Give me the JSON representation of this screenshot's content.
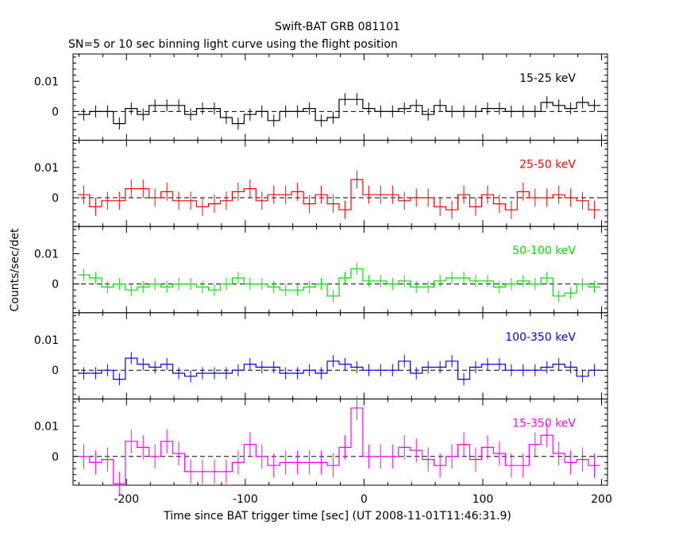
{
  "title": "Swift-BAT GRB 081101",
  "subtitle": "SN=5 or 10 sec binning light curve using the flight position",
  "xlabel": "Time since BAT trigger time [sec] (UT 2008-11-01T11:46:31.9)",
  "ylabel": "Counts/sec/det",
  "chart_data": {
    "type": "line",
    "title": "Swift-BAT GRB 081101",
    "subtitle": "SN=5 or 10 sec binning light curve using the flight position",
    "xlabel": "Time since BAT trigger time [sec] (UT 2008-11-01T11:46:31.9)",
    "ylabel": "Counts/sec/det",
    "xlim": [
      -245,
      205
    ],
    "x_ticks": [
      -200,
      -100,
      0,
      100,
      200
    ],
    "bin_width": 10,
    "x": [
      -236,
      -226,
      -216,
      -206,
      -196,
      -186,
      -176,
      -166,
      -156,
      -146,
      -136,
      -126,
      -116,
      -106,
      -96,
      -86,
      -76,
      -66,
      -56,
      -46,
      -36,
      -26,
      -16,
      -6,
      4,
      14,
      24,
      34,
      44,
      54,
      64,
      74,
      84,
      94,
      104,
      114,
      124,
      134,
      144,
      154,
      164,
      174,
      184,
      194
    ],
    "panels": [
      {
        "label": "15-25 keV",
        "color": "#000000",
        "ylim": [
          -0.0095,
          0.019
        ],
        "y_ticks": [
          0,
          0.01
        ],
        "y_tick_labels": [
          "0",
          "0.01"
        ],
        "values": [
          -0.001,
          0,
          0,
          -0.004,
          0.001,
          -0.001,
          0.002,
          0.002,
          0.002,
          -0.001,
          0.001,
          0.001,
          -0.002,
          -0.004,
          -0.001,
          0,
          -0.003,
          0,
          0,
          0.001,
          -0.003,
          -0.002,
          0.004,
          0.004,
          0.001,
          0,
          0,
          0.001,
          0.002,
          -0.001,
          0.002,
          0,
          0,
          0,
          0.001,
          0.001,
          0,
          0,
          0,
          0.003,
          0.002,
          0.001,
          0.003,
          0.002
        ],
        "errors": [
          0.002,
          0.002,
          0.002,
          0.002,
          0.002,
          0.002,
          0.002,
          0.002,
          0.002,
          0.002,
          0.002,
          0.002,
          0.002,
          0.002,
          0.002,
          0.002,
          0.002,
          0.002,
          0.002,
          0.002,
          0.002,
          0.002,
          0.002,
          0.002,
          0.002,
          0.002,
          0.002,
          0.002,
          0.002,
          0.002,
          0.002,
          0.002,
          0.002,
          0.002,
          0.002,
          0.002,
          0.002,
          0.002,
          0.002,
          0.002,
          0.002,
          0.002,
          0.002,
          0.002
        ]
      },
      {
        "label": "25-50 keV",
        "color": "#ff0000",
        "ylim": [
          -0.0095,
          0.019
        ],
        "y_ticks": [
          0,
          0.01
        ],
        "y_tick_labels": [
          "0",
          "0.01"
        ],
        "values": [
          0.001,
          -0.003,
          -0.001,
          -0.001,
          0.003,
          0.003,
          0,
          0.002,
          -0.001,
          -0.001,
          -0.003,
          -0.002,
          -0.001,
          0.002,
          0.003,
          -0.001,
          0.001,
          0.001,
          0.002,
          -0.002,
          0.001,
          -0.002,
          -0.004,
          0.006,
          0.001,
          0.001,
          0.001,
          -0.001,
          0,
          0,
          -0.003,
          -0.004,
          0.001,
          -0.003,
          0.001,
          -0.002,
          -0.004,
          0.002,
          0,
          0,
          0.001,
          0,
          -0.001,
          -0.004
        ],
        "errors": [
          0.003,
          0.003,
          0.003,
          0.003,
          0.003,
          0.003,
          0.003,
          0.003,
          0.003,
          0.003,
          0.003,
          0.003,
          0.003,
          0.003,
          0.003,
          0.003,
          0.003,
          0.003,
          0.003,
          0.003,
          0.003,
          0.003,
          0.003,
          0.003,
          0.003,
          0.003,
          0.003,
          0.003,
          0.003,
          0.003,
          0.003,
          0.003,
          0.003,
          0.003,
          0.003,
          0.003,
          0.003,
          0.003,
          0.003,
          0.003,
          0.003,
          0.003,
          0.003,
          0.003
        ]
      },
      {
        "label": "50-100 keV",
        "color": "#00e000",
        "ylim": [
          -0.0095,
          0.019
        ],
        "y_ticks": [
          0,
          0.01
        ],
        "y_tick_labels": [
          "0",
          "0.01"
        ],
        "values": [
          0.003,
          0.002,
          -0.001,
          0,
          -0.002,
          -0.001,
          0,
          -0.001,
          0,
          0,
          -0.001,
          -0.002,
          0,
          0.002,
          0,
          0,
          -0.001,
          -0.002,
          -0.002,
          -0.001,
          0,
          -0.004,
          0.002,
          0.005,
          0.001,
          0.001,
          0,
          0.001,
          -0.001,
          -0.001,
          0.001,
          0.002,
          0.002,
          0.001,
          0.001,
          -0.001,
          0,
          0.001,
          0,
          0.002,
          -0.004,
          -0.003,
          0,
          -0.001
        ],
        "errors": [
          0.002,
          0.002,
          0.002,
          0.002,
          0.002,
          0.002,
          0.002,
          0.002,
          0.002,
          0.002,
          0.002,
          0.002,
          0.002,
          0.002,
          0.002,
          0.002,
          0.002,
          0.002,
          0.002,
          0.002,
          0.002,
          0.002,
          0.002,
          0.002,
          0.002,
          0.002,
          0.002,
          0.002,
          0.002,
          0.002,
          0.002,
          0.002,
          0.002,
          0.002,
          0.002,
          0.002,
          0.002,
          0.002,
          0.002,
          0.002,
          0.002,
          0.002,
          0.002,
          0.002
        ]
      },
      {
        "label": "100-350 keV",
        "color": "#0000ff",
        "ylim": [
          -0.0095,
          0.019
        ],
        "y_ticks": [
          0,
          0.01
        ],
        "y_tick_labels": [
          "0",
          "0.01"
        ],
        "values": [
          -0.001,
          -0.001,
          0,
          -0.003,
          0.004,
          0.002,
          0.001,
          0.002,
          -0.001,
          -0.002,
          -0.001,
          -0.001,
          -0.001,
          0,
          0.002,
          0.001,
          0.001,
          -0.001,
          -0.001,
          0,
          -0.001,
          0.003,
          0.002,
          0.001,
          0,
          0,
          0,
          0.003,
          -0.001,
          0.001,
          0.001,
          0.003,
          -0.003,
          0.001,
          0.002,
          0.002,
          0,
          0,
          0,
          0.001,
          0.002,
          0.001,
          -0.002,
          0
        ],
        "errors": [
          0.002,
          0.002,
          0.002,
          0.002,
          0.002,
          0.002,
          0.002,
          0.002,
          0.002,
          0.002,
          0.002,
          0.002,
          0.002,
          0.002,
          0.002,
          0.002,
          0.002,
          0.002,
          0.002,
          0.002,
          0.002,
          0.002,
          0.002,
          0.002,
          0.002,
          0.002,
          0.002,
          0.002,
          0.002,
          0.002,
          0.002,
          0.002,
          0.002,
          0.002,
          0.002,
          0.002,
          0.002,
          0.002,
          0.002,
          0.002,
          0.002,
          0.002,
          0.002,
          0.002
        ]
      },
      {
        "label": "15-350 keV",
        "color": "#ff00ff",
        "ylim": [
          -0.0095,
          0.019
        ],
        "y_ticks": [
          0,
          0.01
        ],
        "y_tick_labels": [
          "0",
          "0.01"
        ],
        "values": [
          0,
          -0.002,
          -0.001,
          -0.009,
          0.005,
          0.003,
          0,
          0.005,
          0.001,
          -0.005,
          -0.005,
          -0.005,
          -0.005,
          -0.002,
          0.004,
          0,
          -0.003,
          -0.002,
          -0.002,
          -0.002,
          -0.002,
          -0.003,
          0.003,
          0.016,
          0,
          0,
          0,
          0.003,
          0.002,
          -0.001,
          -0.003,
          0,
          0.004,
          -0.001,
          0.003,
          0.001,
          -0.003,
          -0.003,
          0.004,
          0.007,
          0.001,
          -0.002,
          -0.001,
          -0.003
        ],
        "errors": [
          0.004,
          0.004,
          0.004,
          0.004,
          0.004,
          0.004,
          0.004,
          0.004,
          0.004,
          0.004,
          0.004,
          0.004,
          0.004,
          0.004,
          0.004,
          0.004,
          0.004,
          0.004,
          0.004,
          0.004,
          0.004,
          0.004,
          0.004,
          0.004,
          0.004,
          0.004,
          0.004,
          0.004,
          0.004,
          0.004,
          0.004,
          0.004,
          0.004,
          0.004,
          0.004,
          0.004,
          0.004,
          0.004,
          0.004,
          0.004,
          0.004,
          0.004,
          0.004,
          0.004
        ]
      }
    ]
  }
}
